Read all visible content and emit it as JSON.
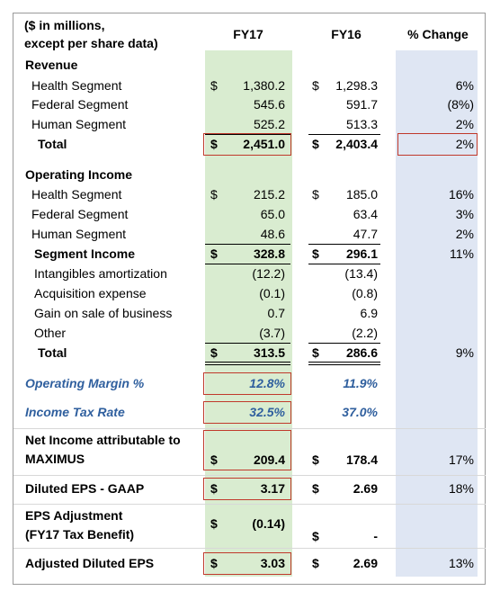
{
  "header": {
    "label": [
      "($ in millions,",
      "except per share data)"
    ],
    "columns": [
      "FY17",
      "FY16",
      "% Change"
    ]
  },
  "rows": [
    {
      "label": [
        "Revenue"
      ]
    },
    {
      "label": [
        "Health Segment"
      ],
      "fy17_sign": "$",
      "fy17": "1,380.2",
      "fy16_sign": "$",
      "fy16": "1,298.3",
      "change": "6%"
    },
    {
      "label": [
        "Federal Segment"
      ],
      "fy17": "545.6",
      "fy16": "591.7",
      "change": "(8%)"
    },
    {
      "label": [
        "Human Segment"
      ],
      "fy17": "525.2",
      "fy16": "513.3",
      "change": "2%"
    },
    {
      "label": [
        "Total"
      ],
      "fy17_sign": "$",
      "fy17": "2,451.0",
      "fy16_sign": "$",
      "fy16": "2,403.4",
      "change": "2%"
    },
    {
      "label": [
        "Operating Income"
      ]
    },
    {
      "label": [
        "Health Segment"
      ],
      "fy17_sign": "$",
      "fy17": "215.2",
      "fy16_sign": "$",
      "fy16": "185.0",
      "change": "16%"
    },
    {
      "label": [
        "Federal Segment"
      ],
      "fy17": "65.0",
      "fy16": "63.4",
      "change": "3%"
    },
    {
      "label": [
        "Human Segment"
      ],
      "fy17": "48.6",
      "fy16": "47.7",
      "change": "2%"
    },
    {
      "label": [
        "Segment Income"
      ],
      "fy17_sign": "$",
      "fy17": "328.8",
      "fy16_sign": "$",
      "fy16": "296.1",
      "change": "11%"
    },
    {
      "label": [
        "Intangibles amortization"
      ],
      "fy17": "(12.2)",
      "fy16": "(13.4)"
    },
    {
      "label": [
        "Acquisition expense"
      ],
      "fy17": "(0.1)",
      "fy16": "(0.8)"
    },
    {
      "label": [
        "Gain on sale of business"
      ],
      "fy17": "0.7",
      "fy16": "6.9"
    },
    {
      "label": [
        "Other"
      ],
      "fy17": "(3.7)",
      "fy16": "(2.2)"
    },
    {
      "label": [
        "Total"
      ],
      "fy17_sign": "$",
      "fy17": "313.5",
      "fy16_sign": "$",
      "fy16": "286.6",
      "change": "9%"
    },
    {
      "label": [
        "Operating Margin %"
      ],
      "fy17": "12.8%",
      "fy16": "11.9%"
    },
    {
      "label": [
        "Income Tax Rate"
      ],
      "fy17": "32.5%",
      "fy16": "37.0%"
    },
    {
      "label": [
        "Net Income attributable to",
        "MAXIMUS"
      ],
      "fy17_sign": "$",
      "fy17": "209.4",
      "fy16_sign": "$",
      "fy16": "178.4",
      "change": "17%"
    },
    {
      "label": [
        "Diluted EPS - GAAP"
      ],
      "fy17_sign": "$",
      "fy17": "3.17",
      "fy16_sign": "$",
      "fy16": "2.69",
      "change": "18%"
    },
    {
      "label": [
        "EPS Adjustment",
        "(FY17 Tax Benefit)"
      ],
      "fy17_sign": "$",
      "fy17": "(0.14)",
      "fy16_sign": "$",
      "fy16": "-"
    },
    {
      "label": [
        "Adjusted Diluted EPS"
      ],
      "fy17_sign": "$",
      "fy17": "3.03",
      "fy16_sign": "$",
      "fy16": "2.69",
      "change": "13%"
    }
  ]
}
